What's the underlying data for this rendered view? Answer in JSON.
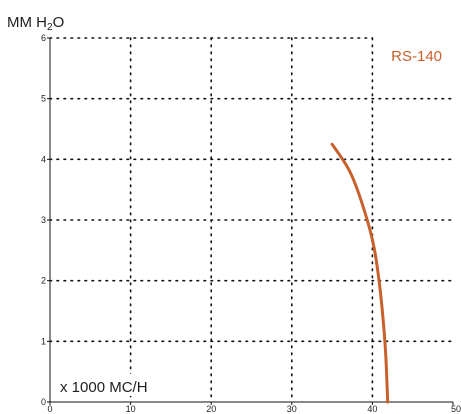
{
  "chart_data": {
    "type": "line",
    "ylabel_main": "MM H",
    "ylabel_sub": "2",
    "ylabel_tail": "O",
    "xlabel": "x 1000 MC/H",
    "xlim": [
      0,
      50
    ],
    "ylim": [
      0,
      6
    ],
    "x_ticks": [
      "0",
      "10",
      "20",
      "30",
      "40",
      "50"
    ],
    "y_ticks": [
      "0",
      "1",
      "2",
      "3",
      "4",
      "5",
      "6"
    ],
    "grid": true,
    "legend_position": "top-right",
    "series": [
      {
        "name": "RS-140",
        "color": "#C8602C",
        "points": [
          {
            "x": 35.0,
            "y": 4.25
          },
          {
            "x": 37.2,
            "y": 3.8
          },
          {
            "x": 38.9,
            "y": 3.2
          },
          {
            "x": 40.2,
            "y": 2.55
          },
          {
            "x": 41.0,
            "y": 1.8
          },
          {
            "x": 41.6,
            "y": 0.9
          },
          {
            "x": 41.9,
            "y": 0.0
          }
        ]
      }
    ]
  }
}
